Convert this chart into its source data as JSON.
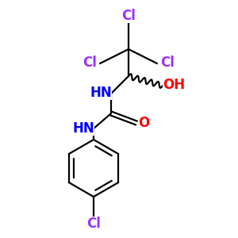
{
  "background_color": "#ffffff",
  "bond_color": "#000000",
  "cl_color": "#9b30ff",
  "n_color": "#0000ff",
  "o_color": "#ff0000",
  "figsize": [
    3.0,
    3.0
  ],
  "dpi": 100,
  "xlim": [
    0,
    300
  ],
  "ylim": [
    0,
    300
  ]
}
